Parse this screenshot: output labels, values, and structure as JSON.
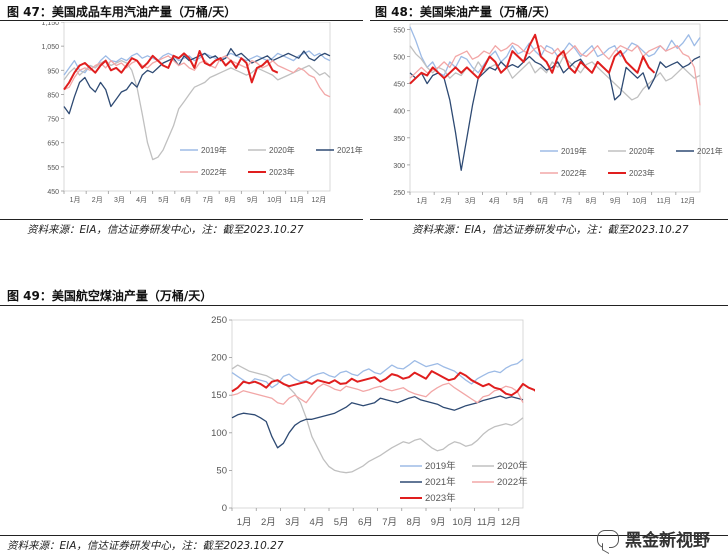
{
  "figures": [
    {
      "title": "图 47：美国成品车用汽油产量（万桶/天）",
      "source": "资料来源：EIA，信达证券研发中心，注：截至2023.10.27"
    },
    {
      "title": "图 48：美国柴油产量（万桶/天）",
      "source": "资料来源：EIA，信达证券研发中心，注：截至2023.10.27"
    },
    {
      "title": "图 49：美国航空煤油产量（万桶/天）",
      "source": "资料来源：EIA，信达证券研发中心，注：截至2023.10.27"
    }
  ],
  "watermark": "黑金新视野",
  "colors": {
    "2019年": "#9dbbe6",
    "2020年": "#c0c0c0",
    "2021年": "#2e4a73",
    "2022年": "#f2a7a7",
    "2023年": "#e01e1e"
  },
  "chart_data": [
    {
      "type": "line",
      "title": "",
      "x_ticks": [
        "1月",
        "2月",
        "3月",
        "4月",
        "5月",
        "6月",
        "7月",
        "8月",
        "9月",
        "10月",
        "11月",
        "12月"
      ],
      "y_ticks": [
        "450",
        "550",
        "650",
        "750",
        "850",
        "950",
        "1,050",
        "1,150"
      ],
      "ylim": [
        450,
        1150
      ],
      "legend": [
        "2019年",
        "2020年",
        "2021年",
        "2022年",
        "2023年"
      ],
      "legend_position": "bottom-right",
      "series": [
        {
          "name": "2019年",
          "values": [
            930,
            960,
            990,
            950,
            940,
            970,
            960,
            990,
            1010,
            990,
            985,
            1000,
            990,
            1010,
            1020,
            1000,
            1010,
            1000,
            990,
            1010,
            1020,
            1010,
            990,
            1000,
            1010,
            990,
            1000,
            1020,
            1010,
            1000,
            990,
            1010,
            1020,
            1010,
            1000,
            990,
            1000,
            1010,
            1000,
            990,
            1000,
            1020,
            1010,
            1000,
            990,
            1010,
            1020,
            1030,
            1010,
            1020,
            1000,
            990
          ]
        },
        {
          "name": "2020年",
          "values": [
            910,
            940,
            960,
            930,
            950,
            970,
            960,
            980,
            990,
            970,
            980,
            990,
            980,
            950,
            880,
            770,
            650,
            580,
            590,
            620,
            670,
            720,
            790,
            820,
            850,
            880,
            890,
            900,
            920,
            930,
            940,
            950,
            960,
            950,
            940,
            930,
            940,
            960,
            950,
            940,
            930,
            910,
            920,
            930,
            940,
            950,
            960,
            970,
            950,
            930,
            940,
            920
          ]
        },
        {
          "name": "2021年",
          "values": [
            800,
            770,
            840,
            900,
            920,
            880,
            860,
            900,
            870,
            800,
            830,
            860,
            870,
            900,
            880,
            930,
            950,
            940,
            960,
            980,
            990,
            1000,
            970,
            1010,
            990,
            1000,
            1010,
            1020,
            1000,
            1010,
            990,
            1000,
            1040,
            1010,
            1020,
            1000,
            980,
            990,
            1000,
            1010,
            990,
            1000,
            1010,
            1020,
            1010,
            1000,
            1030,
            1000,
            990,
            1010,
            1020,
            1010
          ]
        },
        {
          "name": "2022年",
          "values": [
            870,
            880,
            920,
            950,
            960,
            950,
            970,
            980,
            960,
            990,
            970,
            980,
            960,
            980,
            990,
            970,
            960,
            980,
            990,
            1000,
            1010,
            990,
            970,
            980,
            960,
            950,
            980,
            990,
            970,
            960,
            1000,
            1010,
            990,
            980,
            970,
            960,
            990,
            980,
            960,
            970,
            990,
            970,
            960,
            950,
            940,
            960,
            950,
            930,
            920,
            880,
            850,
            840
          ]
        },
        {
          "name": "2023年",
          "values": [
            870,
            900,
            940,
            970,
            980,
            960,
            940,
            970,
            990,
            950,
            960,
            940,
            970,
            1000,
            990,
            960,
            980,
            1010,
            990,
            970,
            960,
            1010,
            1000,
            1020,
            1000,
            960,
            1030,
            980,
            970,
            990,
            1000,
            970,
            990,
            960,
            1000,
            980,
            900,
            960,
            970,
            990,
            950,
            940
          ]
        }
      ]
    },
    {
      "type": "line",
      "title": "",
      "x_ticks": [
        "1月",
        "2月",
        "3月",
        "4月",
        "5月",
        "6月",
        "7月",
        "8月",
        "9月",
        "10月",
        "11月",
        "12月"
      ],
      "y_ticks": [
        "250",
        "300",
        "350",
        "400",
        "450",
        "500",
        "550"
      ],
      "ylim": [
        250,
        560
      ],
      "legend": [
        "2019年",
        "2020年",
        "2021年",
        "2022年",
        "2023年"
      ],
      "legend_position": "bottom-right",
      "series": [
        {
          "name": "2019年",
          "values": [
            555,
            530,
            500,
            480,
            490,
            470,
            465,
            490,
            480,
            500,
            495,
            480,
            470,
            485,
            500,
            510,
            490,
            500,
            520,
            505,
            510,
            525,
            510,
            500,
            520,
            515,
            500,
            510,
            525,
            515,
            500,
            510,
            520,
            500,
            505,
            515,
            520,
            500,
            510,
            525,
            520,
            510,
            500,
            505,
            520,
            510,
            530,
            515,
            525,
            540,
            520,
            535
          ]
        },
        {
          "name": "2020年",
          "values": [
            520,
            505,
            495,
            480,
            470,
            480,
            475,
            460,
            470,
            465,
            480,
            470,
            490,
            475,
            480,
            485,
            470,
            480,
            460,
            470,
            480,
            490,
            470,
            480,
            470,
            490,
            480,
            500,
            490,
            480,
            470,
            485,
            490,
            480,
            470,
            460,
            450,
            440,
            430,
            420,
            425,
            440,
            450,
            460,
            470,
            455,
            460,
            470,
            480,
            470,
            460,
            465
          ]
        },
        {
          "name": "2021年",
          "values": [
            470,
            460,
            470,
            450,
            465,
            470,
            460,
            420,
            360,
            290,
            350,
            410,
            460,
            470,
            480,
            475,
            490,
            480,
            485,
            480,
            490,
            500,
            490,
            485,
            475,
            480,
            490,
            470,
            480,
            490,
            495,
            480,
            470,
            490,
            480,
            470,
            420,
            430,
            480,
            470,
            460,
            470,
            440,
            460,
            490,
            480,
            485,
            490,
            480,
            485,
            495,
            500
          ]
        },
        {
          "name": "2022年",
          "values": [
            460,
            470,
            480,
            470,
            475,
            480,
            490,
            480,
            500,
            505,
            510,
            495,
            500,
            510,
            505,
            520,
            510,
            515,
            525,
            520,
            510,
            505,
            515,
            520,
            510,
            505,
            515,
            500,
            510,
            520,
            505,
            500,
            510,
            520,
            505,
            495,
            510,
            520,
            515,
            510,
            520,
            500,
            510,
            515,
            520,
            510,
            515,
            520,
            505,
            500,
            480,
            410
          ]
        },
        {
          "name": "2023年",
          "values": [
            450,
            460,
            470,
            465,
            480,
            470,
            460,
            470,
            480,
            470,
            480,
            470,
            460,
            480,
            500,
            490,
            470,
            480,
            510,
            500,
            490,
            520,
            540,
            500,
            490,
            470,
            500,
            510,
            480,
            470,
            490,
            480,
            470,
            490,
            480,
            470,
            500,
            510,
            490,
            480,
            470,
            500,
            480,
            470
          ]
        }
      ]
    },
    {
      "type": "line",
      "title": "",
      "x_ticks": [
        "1月",
        "2月",
        "3月",
        "4月",
        "5月",
        "6月",
        "7月",
        "8月",
        "9月",
        "10月",
        "11月",
        "12月"
      ],
      "y_ticks": [
        "0",
        "50",
        "100",
        "150",
        "200",
        "250"
      ],
      "ylim": [
        0,
        250
      ],
      "legend": [
        "2019年",
        "2020年",
        "2021年",
        "2022年",
        "2023年"
      ],
      "legend_position": "bottom-right",
      "series": [
        {
          "name": "2019年",
          "values": [
            180,
            175,
            170,
            165,
            172,
            170,
            168,
            160,
            165,
            175,
            178,
            172,
            168,
            170,
            175,
            178,
            180,
            176,
            174,
            180,
            182,
            178,
            176,
            182,
            185,
            180,
            178,
            184,
            190,
            186,
            185,
            190,
            196,
            192,
            188,
            190,
            192,
            188,
            185,
            182,
            176,
            170,
            165,
            172,
            176,
            180,
            182,
            180,
            186,
            190,
            192,
            198
          ]
        },
        {
          "name": "2020年",
          "values": [
            185,
            190,
            186,
            182,
            180,
            178,
            176,
            172,
            168,
            166,
            160,
            152,
            140,
            120,
            95,
            80,
            65,
            55,
            50,
            48,
            47,
            48,
            52,
            56,
            62,
            66,
            70,
            75,
            80,
            84,
            88,
            86,
            90,
            92,
            86,
            80,
            76,
            78,
            84,
            88,
            86,
            82,
            84,
            90,
            98,
            104,
            108,
            110,
            112,
            110,
            114,
            120
          ]
        },
        {
          "name": "2021年",
          "values": [
            120,
            124,
            126,
            125,
            124,
            120,
            115,
            95,
            80,
            86,
            100,
            110,
            115,
            118,
            118,
            120,
            122,
            124,
            126,
            130,
            134,
            140,
            138,
            136,
            138,
            140,
            146,
            144,
            142,
            140,
            143,
            146,
            148,
            144,
            142,
            140,
            138,
            134,
            132,
            130,
            133,
            136,
            138,
            140,
            143,
            145,
            147,
            149,
            146,
            148,
            146,
            144
          ]
        },
        {
          "name": "2022年",
          "values": [
            150,
            152,
            156,
            154,
            152,
            150,
            148,
            146,
            140,
            138,
            146,
            150,
            145,
            140,
            150,
            160,
            165,
            162,
            158,
            156,
            162,
            160,
            158,
            155,
            157,
            160,
            162,
            158,
            156,
            158,
            160,
            155,
            152,
            150,
            148,
            155,
            160,
            164,
            166,
            160,
            155,
            150,
            145,
            140,
            148,
            150,
            156,
            158,
            162,
            160,
            155,
            140
          ]
        },
        {
          "name": "2023年",
          "values": [
            155,
            160,
            168,
            166,
            168,
            165,
            160,
            168,
            170,
            165,
            162,
            164,
            166,
            168,
            165,
            170,
            168,
            166,
            170,
            165,
            166,
            172,
            168,
            170,
            172,
            174,
            168,
            172,
            178,
            176,
            172,
            174,
            180,
            176,
            172,
            182,
            178,
            174,
            170,
            172,
            180,
            176,
            170,
            166,
            162,
            165,
            160,
            158,
            152,
            150,
            155,
            165,
            160,
            157,
            150
          ]
        }
      ]
    }
  ]
}
